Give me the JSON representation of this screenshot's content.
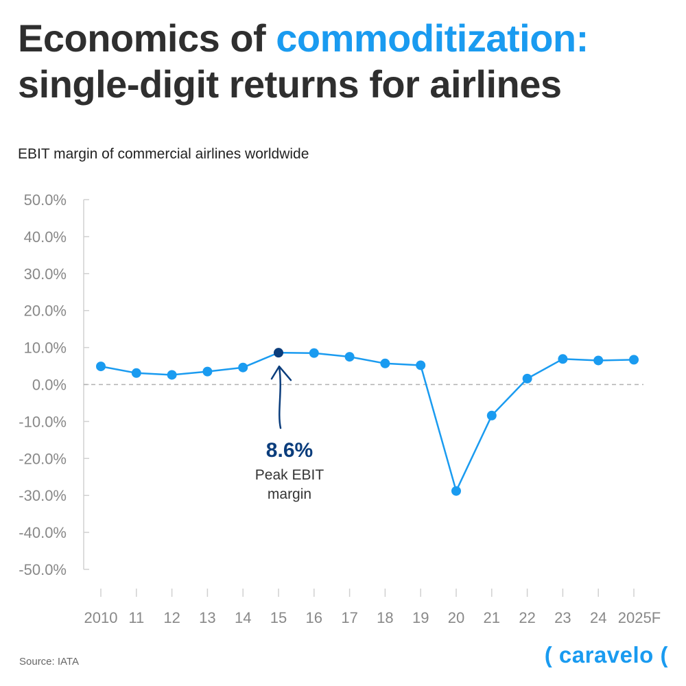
{
  "title": {
    "part1": "Economics of ",
    "accent": "commoditization:",
    "line2": "single-digit returns for airlines"
  },
  "subtitle": "EBIT margin of commercial airlines worldwide",
  "source": "Source: IATA",
  "logo": "( caravelo (",
  "colors": {
    "accent": "#1a9bf0",
    "line": "#1a9bf0",
    "highlight_point": "#0b3d7c",
    "title": "#2f2f2f",
    "axis": "#d0d0d0",
    "zero_line": "#b0b0b0",
    "tick_label": "#888888"
  },
  "annotation": {
    "value": "8.6%",
    "label_line1": "Peak EBIT",
    "label_line2": "margin",
    "icon": "arrow-up-icon"
  },
  "chart_data": {
    "type": "line",
    "title": "EBIT margin of commercial airlines worldwide",
    "xlabel": "",
    "ylabel": "",
    "categories": [
      "2010",
      "11",
      "12",
      "13",
      "14",
      "15",
      "16",
      "17",
      "18",
      "19",
      "20",
      "21",
      "22",
      "23",
      "24",
      "2025F"
    ],
    "series": [
      {
        "values": [
          4.9,
          3.1,
          2.6,
          3.5,
          4.6,
          8.6,
          8.5,
          7.5,
          5.7,
          5.2,
          -28.8,
          -8.4,
          1.6,
          6.9,
          6.5,
          6.7
        ]
      }
    ],
    "highlight_index": 5,
    "ylim": [
      -50,
      50
    ],
    "yticks": [
      "50.0%",
      "40.0%",
      "30.0%",
      "20.0%",
      "10.0%",
      "0.0%",
      "-10.0%",
      "-20.0%",
      "-30.0%",
      "-40.0%",
      "-50.0%"
    ],
    "ytick_values": [
      50,
      40,
      30,
      20,
      10,
      0,
      -10,
      -20,
      -30,
      -40,
      -50
    ],
    "grid": false,
    "zero_line": "dashed"
  }
}
